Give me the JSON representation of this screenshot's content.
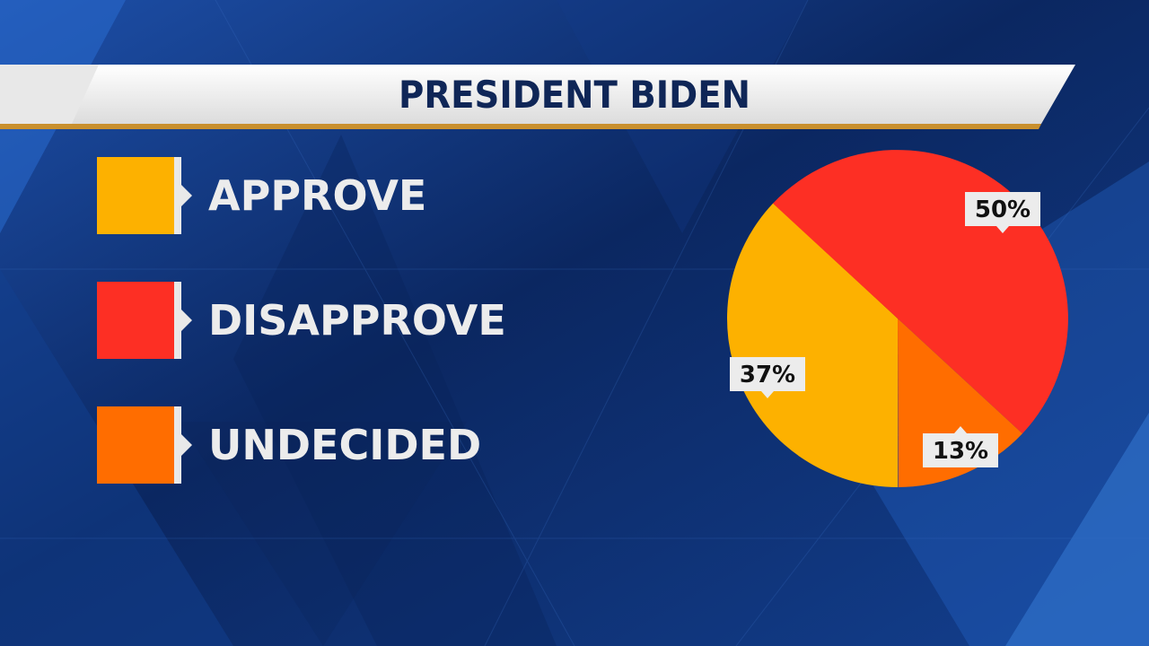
{
  "colors": {
    "approve": "#fdb100",
    "disapprove": "#fd2f24",
    "undecided": "#ff6d00",
    "title_text": "#0f2657",
    "legend_text": "#ececec"
  },
  "chart_data": {
    "type": "pie",
    "title": "PRESIDENT BIDEN",
    "legend_placement": "left",
    "slices": [
      {
        "name": "APPROVE",
        "value": 37,
        "label": "37%",
        "color": "#fdb100"
      },
      {
        "name": "DISAPPROVE",
        "value": 50,
        "label": "50%",
        "color": "#fd2f24"
      },
      {
        "name": "UNDECIDED",
        "value": 13,
        "label": "13%",
        "color": "#ff6d00"
      }
    ]
  }
}
